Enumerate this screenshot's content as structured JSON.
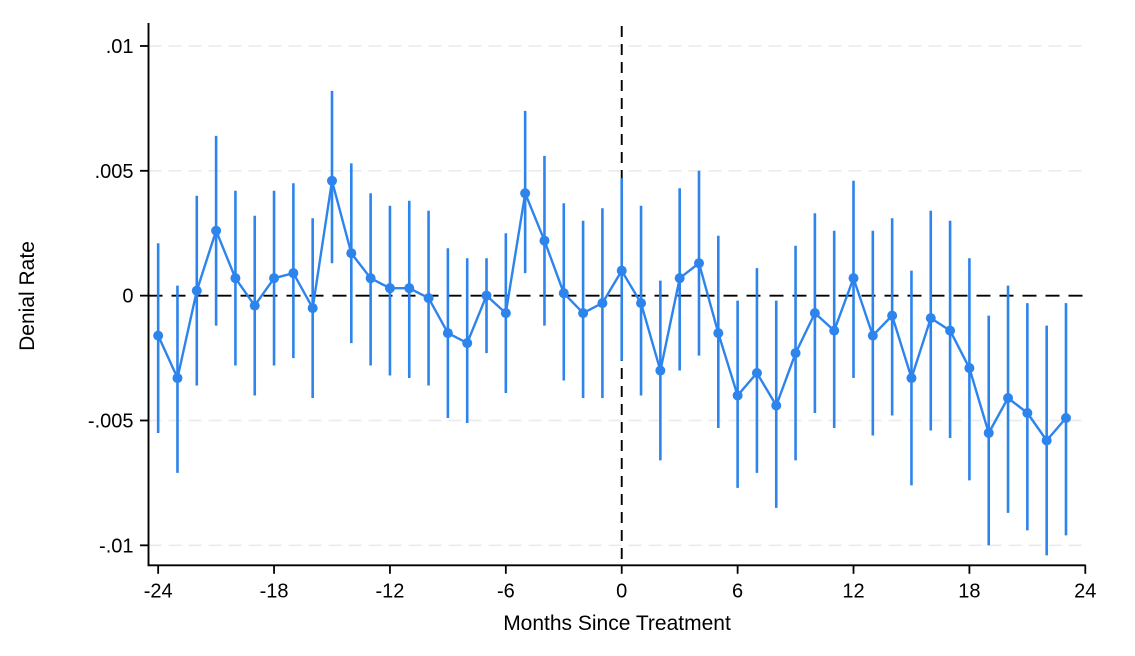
{
  "chart_data": {
    "type": "line",
    "subtype": "event-study scatter with 95% confidence error bars",
    "title": "",
    "xlabel": "Months Since Treatment",
    "ylabel": "Denial Rate",
    "xlim": [
      -24.5,
      24.0
    ],
    "ylim": [
      -0.0108,
      0.0108
    ],
    "grid": true,
    "legend": "none",
    "xticks": {
      "values": [
        -24,
        -18,
        -12,
        -6,
        0,
        6,
        12,
        18,
        24
      ],
      "labels": [
        "-24",
        "-18",
        "-12",
        "-6",
        "0",
        "6",
        "12",
        "18",
        "24"
      ]
    },
    "yticks": {
      "values": [
        0.01,
        0.005,
        0,
        -0.005,
        -0.01
      ],
      "labels": [
        ".01",
        ".005",
        "0",
        "-.005",
        "-.01"
      ]
    },
    "refline_horizontal_y": 0,
    "refline_vertical_x": 0,
    "x": [
      -24,
      -23,
      -22,
      -21,
      -20,
      -19,
      -18,
      -17,
      -16,
      -15,
      -14,
      -13,
      -12,
      -11,
      -10,
      -9,
      -8,
      -7,
      -6,
      -5,
      -4,
      -3,
      -2,
      -1,
      0,
      1,
      2,
      3,
      4,
      5,
      6,
      7,
      8,
      9,
      10,
      11,
      12,
      13,
      14,
      15,
      16,
      17,
      18,
      19,
      20,
      21,
      22,
      23
    ],
    "y": [
      -0.0016,
      -0.0033,
      0.0002,
      0.0026,
      0.0007,
      -0.0004,
      0.0007,
      0.0009,
      -0.0005,
      0.0046,
      0.0017,
      0.0007,
      0.0003,
      0.0003,
      -0.0001,
      -0.0015,
      -0.0019,
      0.0,
      -0.0007,
      0.0041,
      0.0022,
      0.0001,
      -0.0007,
      -0.0003,
      0.001,
      -0.0003,
      -0.003,
      0.0007,
      0.0013,
      -0.0015,
      -0.004,
      -0.0031,
      -0.0044,
      -0.0023,
      -0.0007,
      -0.0014,
      0.0007,
      -0.0016,
      -0.0008,
      -0.0033,
      -0.0009,
      -0.0014,
      -0.0029,
      -0.0055,
      -0.0041,
      -0.0047,
      -0.0058,
      -0.0049
    ],
    "ci_high": [
      0.0021,
      0.0004,
      0.004,
      0.0064,
      0.0042,
      0.0032,
      0.0042,
      0.0045,
      0.0031,
      0.0082,
      0.0053,
      0.0041,
      0.0036,
      0.0038,
      0.0034,
      0.0019,
      0.0015,
      0.0015,
      0.0025,
      0.0074,
      0.0056,
      0.0037,
      0.003,
      0.0035,
      0.0047,
      0.0036,
      0.0006,
      0.0043,
      0.005,
      0.0024,
      -0.0002,
      0.0011,
      -0.0002,
      0.002,
      0.0033,
      0.0026,
      0.0046,
      0.0026,
      0.0031,
      0.001,
      0.0034,
      0.003,
      0.0015,
      -0.0008,
      0.0004,
      -0.0003,
      -0.0012,
      -0.0003
    ],
    "ci_low": [
      -0.0055,
      -0.0071,
      -0.0036,
      -0.0012,
      -0.0028,
      -0.004,
      -0.0028,
      -0.0025,
      -0.0041,
      0.0013,
      -0.0019,
      -0.0028,
      -0.0032,
      -0.0033,
      -0.0036,
      -0.0049,
      -0.0051,
      -0.0023,
      -0.0039,
      0.0009,
      -0.0012,
      -0.0034,
      -0.0041,
      -0.0041,
      -0.0026,
      -0.004,
      -0.0066,
      -0.003,
      -0.0024,
      -0.0053,
      -0.0077,
      -0.0071,
      -0.0085,
      -0.0066,
      -0.0047,
      -0.0053,
      -0.0033,
      -0.0056,
      -0.0048,
      -0.0076,
      -0.0054,
      -0.0057,
      -0.0074,
      -0.01,
      -0.0087,
      -0.0094,
      -0.0104,
      -0.0096
    ],
    "colors": {
      "series": "#2d84ec",
      "marker": "#2d84ec",
      "error_bar": "#2d84ec",
      "reference_line": "#000000",
      "grid_line": "#ebebeb",
      "axis": "#000000",
      "background": "#ffffff"
    }
  }
}
